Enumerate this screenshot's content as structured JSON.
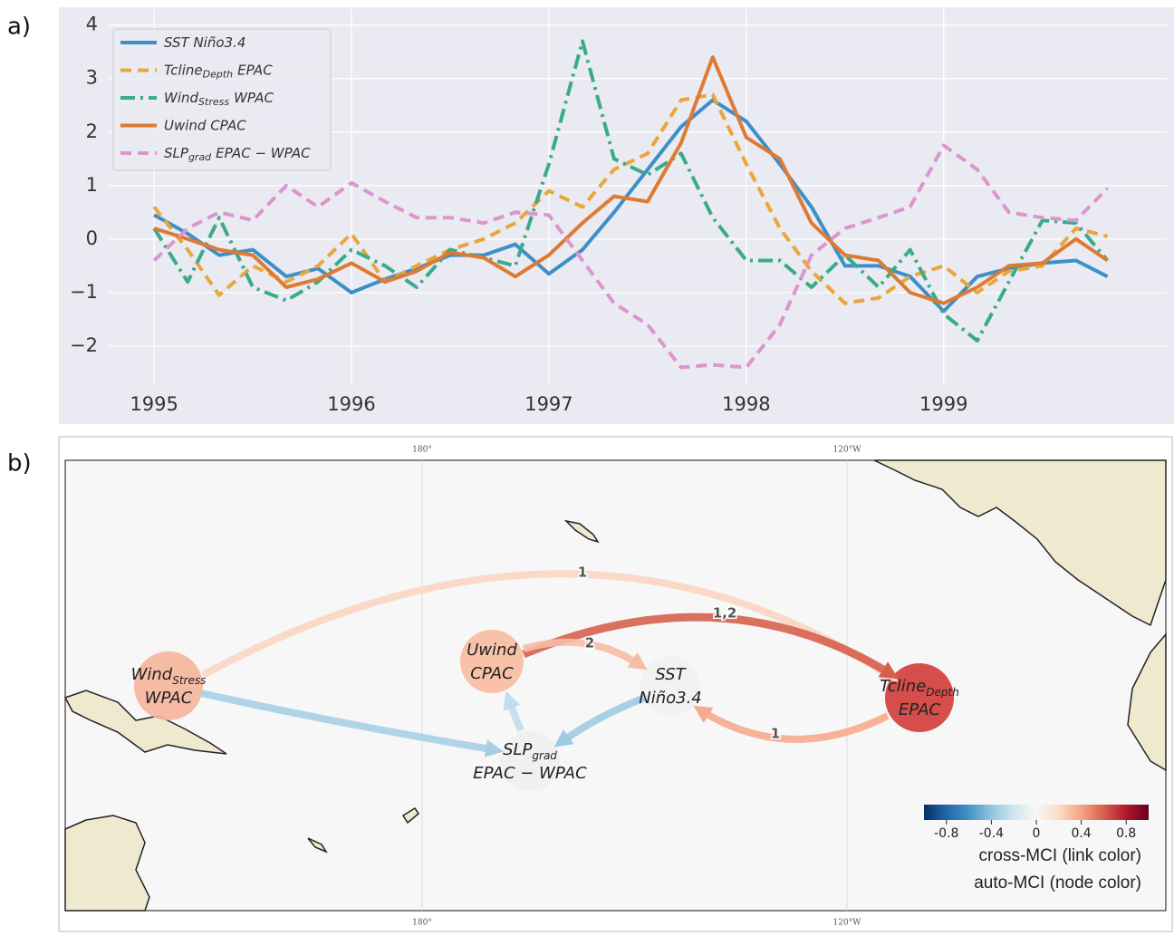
{
  "panel_labels": [
    "a)",
    "b)"
  ],
  "chart_data": {
    "type": "line",
    "x": [
      1995,
      1995.17,
      1995.33,
      1995.5,
      1995.67,
      1995.83,
      1996,
      1996.17,
      1996.33,
      1996.5,
      1996.67,
      1996.83,
      1997,
      1997.17,
      1997.33,
      1997.5,
      1997.67,
      1997.83,
      1998,
      1998.17,
      1998.33,
      1998.5,
      1998.67,
      1998.83,
      1999,
      1999.17,
      1999.33,
      1999.5,
      1999.67,
      1999.83
    ],
    "series": [
      {
        "name": "SST Niño3.4",
        "color": "#3d8fc7",
        "linestyle": "solid",
        "values": [
          0.45,
          0.1,
          -0.3,
          -0.2,
          -0.7,
          -0.55,
          -1.0,
          -0.75,
          -0.55,
          -0.3,
          -0.3,
          -0.1,
          -0.65,
          -0.2,
          0.5,
          1.3,
          2.1,
          2.6,
          2.2,
          1.4,
          0.6,
          -0.5,
          -0.5,
          -0.7,
          -1.35,
          -0.7,
          -0.55,
          -0.45,
          -0.4,
          -0.7
        ]
      },
      {
        "name": "Tcline",
        "name_sub": "Depth",
        "name_end": "EPAC",
        "color": "#e9a63a",
        "linestyle": "dashed",
        "values": [
          0.6,
          -0.2,
          -1.05,
          -0.5,
          -0.8,
          -0.5,
          0.1,
          -0.8,
          -0.5,
          -0.2,
          0.0,
          0.3,
          0.9,
          0.6,
          1.3,
          1.6,
          2.6,
          2.7,
          1.4,
          0.2,
          -0.6,
          -1.2,
          -1.1,
          -0.7,
          -0.5,
          -1.0,
          -0.6,
          -0.5,
          0.2,
          0.05
        ]
      },
      {
        "name": "Wind",
        "name_sub": "Stress",
        "name_end": "WPAC",
        "color": "#3aab8a",
        "linestyle": "dashdot",
        "values": [
          0.2,
          -0.8,
          0.4,
          -0.9,
          -1.15,
          -0.8,
          -0.2,
          -0.5,
          -0.9,
          -0.2,
          -0.35,
          -0.5,
          1.4,
          3.7,
          1.5,
          1.2,
          1.6,
          0.4,
          -0.4,
          -0.4,
          -0.9,
          -0.3,
          -0.9,
          -0.2,
          -1.4,
          -1.9,
          -0.8,
          0.35,
          0.3,
          -0.4
        ]
      },
      {
        "name": "Uwind CPAC",
        "color": "#de7a33",
        "linestyle": "solid",
        "values": [
          0.2,
          0.0,
          -0.2,
          -0.3,
          -0.9,
          -0.75,
          -0.45,
          -0.8,
          -0.6,
          -0.25,
          -0.35,
          -0.7,
          -0.3,
          0.3,
          0.8,
          0.7,
          1.8,
          3.4,
          1.9,
          1.5,
          0.3,
          -0.3,
          -0.4,
          -1.0,
          -1.2,
          -0.9,
          -0.5,
          -0.45,
          0.0,
          -0.4
        ]
      },
      {
        "name": "SLP",
        "name_sub": "grad",
        "name_end": "EPAC − WPAC",
        "color": "#dc95d0",
        "linestyle": "dashed",
        "values": [
          -0.4,
          0.2,
          0.5,
          0.35,
          1.0,
          0.6,
          1.05,
          0.7,
          0.4,
          0.4,
          0.3,
          0.5,
          0.45,
          -0.4,
          -1.2,
          -1.6,
          -2.4,
          -2.35,
          -2.4,
          -1.6,
          -0.3,
          0.2,
          0.4,
          0.6,
          1.75,
          1.3,
          0.5,
          0.4,
          0.35,
          0.95
        ]
      }
    ],
    "xlim": [
      1994.77,
      2000.13
    ],
    "xticks": [
      1995,
      1996,
      1997,
      1998,
      1999
    ],
    "ylim": [
      -2.73,
      4.3
    ],
    "yticks": [
      {
        "value": -2,
        "label": "−2"
      },
      {
        "value": -1,
        "label": "−1"
      },
      0,
      1,
      2,
      3,
      4
    ],
    "grid": true,
    "legend": "upper left"
  },
  "diagram": {
    "map_labels": {
      "top": [
        "180°",
        "120°W"
      ],
      "bottom": [
        "180°",
        "120°W"
      ]
    },
    "nodes": [
      {
        "label": "Wind",
        "sub": "Stress",
        "label2": "WPAC",
        "color": "#f4b49a"
      },
      {
        "label": "Uwind",
        "label2": "CPAC",
        "color": "#f7bba0"
      },
      {
        "label": "SST",
        "label2": "Niño3.4",
        "color": "#f1f1f1"
      },
      {
        "label": "SLP",
        "sub": "grad",
        "label2": "EPAC − WPAC",
        "color": "#eeeeee"
      },
      {
        "label": "Tcline",
        "sub": "Depth",
        "label2": "EPAC",
        "color": "#d13b37"
      }
    ],
    "links": [
      {
        "from": 0,
        "to": 4,
        "label": "1",
        "color": "#fbd5c3"
      },
      {
        "from": 1,
        "to": 4,
        "label": "1,2",
        "color": "#d6604d"
      },
      {
        "from": 1,
        "to": 2,
        "label": "2",
        "color": "#f6bda6"
      },
      {
        "from": 4,
        "to": 2,
        "label": "1",
        "color": "#f5ab8c"
      },
      {
        "from": 0,
        "to": 3,
        "color": "#a7cfe4"
      },
      {
        "from": 2,
        "to": 3,
        "color": "#9fcbe2"
      },
      {
        "from": 3,
        "to": 1,
        "color": "#c0ddec"
      }
    ],
    "colorbar": {
      "range": [
        -1,
        1
      ],
      "ticks": [
        -0.8,
        -0.4,
        0,
        0.4,
        0.8
      ],
      "colors": [
        "#053061",
        "#2166ac",
        "#4393c3",
        "#92c5de",
        "#d1e5f0",
        "#f7f7f7",
        "#fddbc7",
        "#f4a582",
        "#d6604d",
        "#b2182b",
        "#67001f"
      ],
      "caption": [
        "cross-MCI (link color)",
        "auto-MCI (node color)"
      ]
    }
  }
}
